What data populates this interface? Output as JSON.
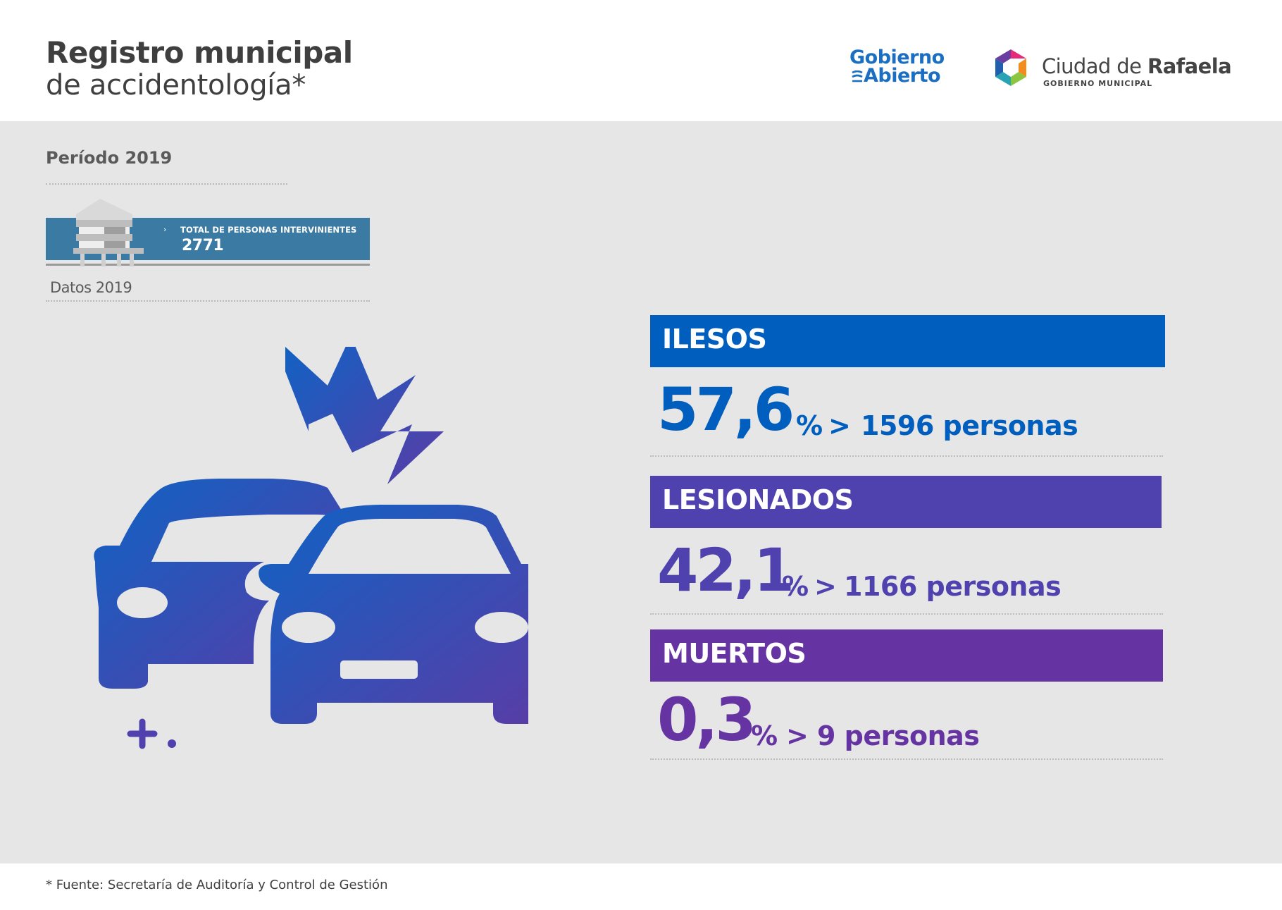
{
  "header": {
    "title_line1": "Registro municipal",
    "title_line2": "de accidentología*",
    "logo_gobierno_abierto": {
      "line1": "Gobierno",
      "line2": "Abierto",
      "color": "#1a6fc3"
    },
    "logo_ciudad": {
      "name_regular": "Ciudad de ",
      "name_bold": "Rafaela",
      "subtitle": "GOBIERNO MUNICIPAL"
    }
  },
  "main": {
    "periodo": "Período 2019",
    "total": {
      "arrow": "›",
      "label": "TOTAL DE PERSONAS INTERVINIENTES",
      "value": "2771",
      "icon": "building-icon"
    },
    "datos": "Datos 2019",
    "illustration": "car-crash-icon",
    "stats": [
      {
        "label": "ILESOS",
        "percent": "57,6",
        "percent_sign": "%",
        "arrow": ">",
        "people": "1596 personas",
        "color": "#005ebe"
      },
      {
        "label": "LESIONADOS",
        "percent": "42,1",
        "percent_sign": "%",
        "arrow": ">",
        "people": "1166 personas",
        "color": "#4f42ae"
      },
      {
        "label": "MUERTOS",
        "percent": "0,3",
        "percent_sign": "%",
        "arrow": ">",
        "people": "9 personas",
        "color": "#6634a2"
      }
    ]
  },
  "footer": {
    "source": "* Fuente:  Secretaría de Auditoría y Control de Gestión"
  }
}
